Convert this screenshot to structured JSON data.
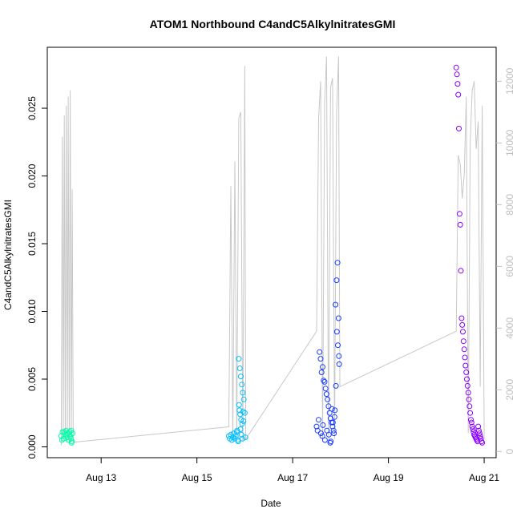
{
  "chart_data": {
    "type": "scatter",
    "title": "ATOM1 Northbound C4andC5AlkylnitratesGMI",
    "xlabel": "Date",
    "ylabel": "C4andC5AlkylnitratesGMI",
    "y2label": "",
    "xlim": [
      "2016-08-11T21:00",
      "2016-08-21T06:00"
    ],
    "ylim": [
      -0.0008,
      0.0295
    ],
    "y2lim": [
      -200,
      13100
    ],
    "x_ticks": [
      {
        "date": "2016-08-13",
        "label": "Aug 13"
      },
      {
        "date": "2016-08-15",
        "label": "Aug 15"
      },
      {
        "date": "2016-08-17",
        "label": "Aug 17"
      },
      {
        "date": "2016-08-19",
        "label": "Aug 19"
      },
      {
        "date": "2016-08-21",
        "label": "Aug 21"
      }
    ],
    "y_ticks": [
      {
        "value": 0.0,
        "label": "0.000"
      },
      {
        "value": 0.005,
        "label": "0.005"
      },
      {
        "value": 0.01,
        "label": "0.010"
      },
      {
        "value": 0.015,
        "label": "0.015"
      },
      {
        "value": 0.02,
        "label": "0.020"
      },
      {
        "value": 0.025,
        "label": "0.025"
      }
    ],
    "y2_ticks": [
      {
        "value": 0,
        "label": "0"
      },
      {
        "value": 2000,
        "label": "2000"
      },
      {
        "value": 4000,
        "label": "4000"
      },
      {
        "value": 6000,
        "label": "6000"
      },
      {
        "value": 8000,
        "label": "8000"
      },
      {
        "value": 10000,
        "label": "10000"
      },
      {
        "value": 12000,
        "label": "12000"
      }
    ],
    "grid": false,
    "colors": {
      "flight1": "#00ffaa",
      "flight2": "#00bfff",
      "flight3": "#1a3cff",
      "flight4": "#8a00ff",
      "altitude": "#c8c8c8",
      "axis": "#000000",
      "right_axis": "#bfbfbf"
    },
    "series": [
      {
        "color_key": "flight1",
        "x": [
          "2016-08-12T04:00",
          "2016-08-12T04:40",
          "2016-08-12T05:10",
          "2016-08-12T05:50",
          "2016-08-12T06:30",
          "2016-08-12T07:00",
          "2016-08-12T07:20",
          "2016-08-12T07:40",
          "2016-08-12T08:10",
          "2016-08-12T08:30",
          "2016-08-12T09:00",
          "2016-08-12T09:20",
          "2016-08-12T09:40",
          "2016-08-12T04:20",
          "2016-08-12T05:30",
          "2016-08-12T06:50",
          "2016-08-12T08:50",
          "2016-08-12T09:10"
        ],
        "y": [
          0.0008,
          0.0011,
          0.0006,
          0.0009,
          0.0012,
          0.0007,
          0.001,
          0.0005,
          0.0011,
          0.0008,
          0.0012,
          0.0004,
          0.001,
          0.0005,
          0.0011,
          0.0009,
          0.0006,
          0.0003
        ]
      },
      {
        "color_key": "flight2",
        "x": [
          "2016-08-15T16:00",
          "2016-08-15T16:30",
          "2016-08-15T17:00",
          "2016-08-15T17:30",
          "2016-08-15T18:00",
          "2016-08-15T18:30",
          "2016-08-15T19:00",
          "2016-08-15T19:30",
          "2016-08-15T20:00",
          "2016-08-15T20:30",
          "2016-08-15T21:00",
          "2016-08-15T21:30",
          "2016-08-15T22:00",
          "2016-08-15T22:30",
          "2016-08-15T23:00",
          "2016-08-15T23:30",
          "2016-08-15T21:10",
          "2016-08-15T21:20",
          "2016-08-15T21:40",
          "2016-08-15T22:10",
          "2016-08-15T22:40",
          "2016-08-15T21:50",
          "2016-08-15T22:20",
          "2016-08-15T22:50",
          "2016-08-15T23:10",
          "2016-08-15T23:20",
          "2016-08-16T00:00",
          "2016-08-16T00:20",
          "2016-08-15T20:10",
          "2016-08-15T20:40"
        ],
        "y": [
          0.0008,
          0.0006,
          0.0009,
          0.0005,
          0.0007,
          0.001,
          0.0006,
          0.0008,
          0.0011,
          0.0005,
          0.0065,
          0.0058,
          0.0052,
          0.0046,
          0.004,
          0.0035,
          0.0031,
          0.0027,
          0.0024,
          0.002,
          0.0017,
          0.0013,
          0.0009,
          0.0006,
          0.0026,
          0.0019,
          0.0025,
          0.0007,
          0.0012,
          0.0004
        ]
      },
      {
        "color_key": "flight3",
        "x": [
          "2016-08-17T12:00",
          "2016-08-17T12:30",
          "2016-08-17T13:00",
          "2016-08-17T13:30",
          "2016-08-17T14:00",
          "2016-08-17T14:30",
          "2016-08-17T15:00",
          "2016-08-17T15:30",
          "2016-08-17T16:00",
          "2016-08-17T16:30",
          "2016-08-17T17:00",
          "2016-08-17T17:30",
          "2016-08-17T18:00",
          "2016-08-17T18:30",
          "2016-08-17T19:00",
          "2016-08-17T19:30",
          "2016-08-17T20:00",
          "2016-08-17T20:30",
          "2016-08-17T21:00",
          "2016-08-17T21:30",
          "2016-08-17T22:00",
          "2016-08-17T22:30",
          "2016-08-17T23:00",
          "2016-08-17T14:10",
          "2016-08-17T14:50",
          "2016-08-17T15:10",
          "2016-08-17T16:10",
          "2016-08-17T17:10",
          "2016-08-17T18:10",
          "2016-08-17T19:10",
          "2016-08-17T20:10",
          "2016-08-17T21:10",
          "2016-08-17T22:10",
          "2016-08-17T22:40",
          "2016-08-17T23:10",
          "2016-08-17T23:20",
          "2016-08-17T18:50",
          "2016-08-17T19:40",
          "2016-08-17T20:40",
          "2016-08-17T21:40"
        ],
        "y": [
          0.0015,
          0.0012,
          0.002,
          0.007,
          0.0065,
          0.0055,
          0.0059,
          0.0049,
          0.0048,
          0.0043,
          0.0039,
          0.0035,
          0.003,
          0.0025,
          0.0021,
          0.0018,
          0.0015,
          0.0012,
          0.0022,
          0.0105,
          0.0123,
          0.0136,
          0.0095,
          0.001,
          0.0008,
          0.0016,
          0.0005,
          0.0012,
          0.0009,
          0.0004,
          0.0018,
          0.0027,
          0.0085,
          0.0075,
          0.0067,
          0.0061,
          0.0003,
          0.0028,
          0.001,
          0.0045
        ]
      },
      {
        "color_key": "flight4",
        "x": [
          "2016-08-20T10:00",
          "2016-08-20T10:20",
          "2016-08-20T10:40",
          "2016-08-20T11:00",
          "2016-08-20T11:20",
          "2016-08-20T11:40",
          "2016-08-20T12:00",
          "2016-08-20T12:20",
          "2016-08-20T12:40",
          "2016-08-20T13:00",
          "2016-08-20T13:20",
          "2016-08-20T13:40",
          "2016-08-20T14:00",
          "2016-08-20T14:20",
          "2016-08-20T14:40",
          "2016-08-20T15:00",
          "2016-08-20T15:20",
          "2016-08-20T15:40",
          "2016-08-20T16:00",
          "2016-08-20T16:20",
          "2016-08-20T16:40",
          "2016-08-20T17:00",
          "2016-08-20T17:20",
          "2016-08-20T17:40",
          "2016-08-20T18:00",
          "2016-08-20T18:20",
          "2016-08-20T18:40",
          "2016-08-20T19:00",
          "2016-08-20T19:20",
          "2016-08-20T19:40",
          "2016-08-20T20:00",
          "2016-08-20T20:20",
          "2016-08-20T20:40",
          "2016-08-20T21:00",
          "2016-08-20T21:20",
          "2016-08-20T21:40",
          "2016-08-20T22:00",
          "2016-08-20T22:20",
          "2016-08-20T22:40",
          "2016-08-20T23:00"
        ],
        "y": [
          0.028,
          0.0275,
          0.0268,
          0.026,
          0.0235,
          0.0172,
          0.0164,
          0.013,
          0.0095,
          0.009,
          0.0085,
          0.0078,
          0.0072,
          0.0066,
          0.006,
          0.0055,
          0.005,
          0.0045,
          0.004,
          0.0035,
          0.003,
          0.0025,
          0.002,
          0.0018,
          0.0015,
          0.0013,
          0.0011,
          0.0009,
          0.0008,
          0.0007,
          0.0006,
          0.0005,
          0.0004,
          0.0015,
          0.0012,
          0.001,
          0.0008,
          0.0006,
          0.0004,
          0.0003
        ]
      }
    ],
    "altitude_line": {
      "axis": "right",
      "x": [
        "2016-08-12T04:00",
        "2016-08-12T04:30",
        "2016-08-12T05:00",
        "2016-08-12T05:30",
        "2016-08-12T06:00",
        "2016-08-12T06:30",
        "2016-08-12T07:00",
        "2016-08-12T07:30",
        "2016-08-12T08:00",
        "2016-08-12T08:30",
        "2016-08-12T09:00",
        "2016-08-12T09:30",
        "2016-08-12T10:00",
        "2016-08-15T16:00",
        "2016-08-15T17:00",
        "2016-08-15T18:00",
        "2016-08-15T19:00",
        "2016-08-15T20:00",
        "2016-08-15T21:00",
        "2016-08-15T22:00",
        "2016-08-15T23:00",
        "2016-08-16T00:00",
        "2016-08-16T00:30",
        "2016-08-17T12:00",
        "2016-08-17T13:00",
        "2016-08-17T14:00",
        "2016-08-17T15:00",
        "2016-08-17T16:00",
        "2016-08-17T17:00",
        "2016-08-17T18:00",
        "2016-08-17T19:00",
        "2016-08-17T20:00",
        "2016-08-17T21:00",
        "2016-08-17T22:00",
        "2016-08-17T23:00",
        "2016-08-17T23:40",
        "2016-08-20T10:00",
        "2016-08-20T11:00",
        "2016-08-20T12:00",
        "2016-08-20T13:00",
        "2016-08-20T14:00",
        "2016-08-20T15:00",
        "2016-08-20T16:00",
        "2016-08-20T17:00",
        "2016-08-20T18:00",
        "2016-08-20T19:00",
        "2016-08-20T20:00",
        "2016-08-20T21:00",
        "2016-08-20T22:00",
        "2016-08-20T23:00",
        "2016-08-21T00:00"
      ],
      "y": [
        200,
        10200,
        300,
        10900,
        400,
        11200,
        300,
        11500,
        250,
        11700,
        300,
        8500,
        300,
        800,
        8600,
        350,
        9400,
        400,
        10800,
        11000,
        300,
        12500,
        400,
        3900,
        10800,
        12000,
        400,
        11300,
        12800,
        350,
        11800,
        12100,
        400,
        11000,
        12800,
        2100,
        3900,
        9600,
        9300,
        8200,
        9000,
        11500,
        600,
        10000,
        11700,
        12000,
        9800,
        10700,
        2100,
        11200,
        400
      ]
    }
  }
}
